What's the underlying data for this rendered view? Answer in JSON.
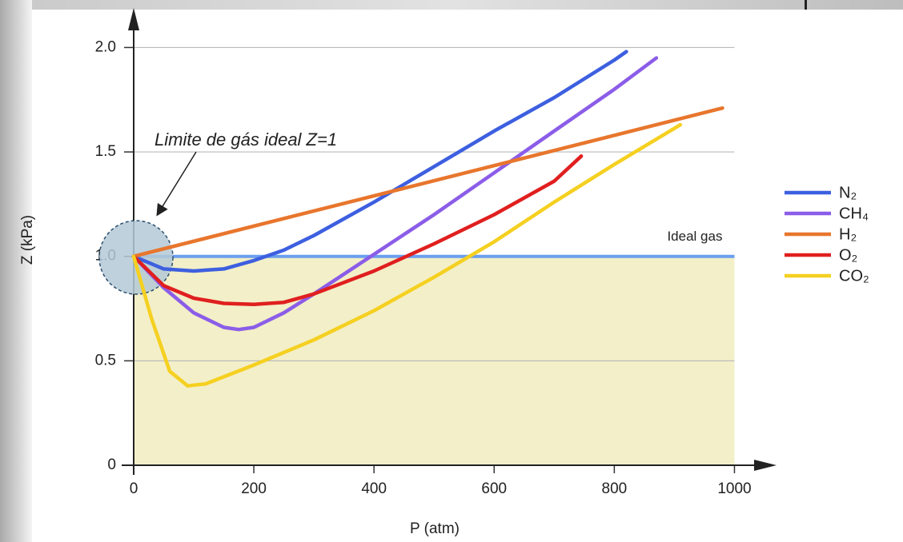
{
  "chart_data": {
    "type": "line",
    "xlabel": "P (atm)",
    "ylabel": "Z (kPa)",
    "annotation": "Limite de gás ideal Z=1",
    "reference_line": {
      "value": 1,
      "label": "Ideal gas",
      "color": "#6a9ef0",
      "fill": "#f3efc8"
    },
    "xlim": [
      0,
      1070
    ],
    "ylim": [
      0,
      2.17
    ],
    "xticks": [
      0,
      200,
      400,
      600,
      800,
      1000
    ],
    "yticks": [
      0,
      0.5,
      {
        "value": 1,
        "label": "1.0"
      },
      1.5,
      {
        "value": 2,
        "label": "2.0"
      }
    ],
    "grid": true,
    "legend": "right",
    "series": [
      {
        "name": "N₂",
        "color": "#3d5fe0",
        "x": [
          0,
          50,
          100,
          150,
          200,
          250,
          300,
          400,
          500,
          600,
          700,
          800,
          820
        ],
        "values": [
          1.0,
          0.94,
          0.93,
          0.94,
          0.98,
          1.03,
          1.1,
          1.26,
          1.43,
          1.6,
          1.76,
          1.94,
          1.98
        ]
      },
      {
        "name": "CH₄",
        "color": "#8b5de8",
        "x": [
          0,
          50,
          100,
          150,
          175,
          200,
          250,
          300,
          400,
          500,
          600,
          700,
          800,
          870
        ],
        "values": [
          1.0,
          0.85,
          0.73,
          0.66,
          0.65,
          0.66,
          0.73,
          0.82,
          1.01,
          1.2,
          1.4,
          1.6,
          1.8,
          1.95
        ]
      },
      {
        "name": "H₂",
        "color": "#e8762d",
        "x": [
          0,
          980
        ],
        "values": [
          1.0,
          1.71
        ]
      },
      {
        "name": "O₂",
        "color": "#e01f1f",
        "x": [
          0,
          50,
          100,
          150,
          200,
          250,
          300,
          400,
          500,
          600,
          700,
          745
        ],
        "values": [
          1.0,
          0.86,
          0.8,
          0.775,
          0.77,
          0.78,
          0.82,
          0.93,
          1.06,
          1.2,
          1.36,
          1.48
        ]
      },
      {
        "name": "CO₂",
        "color": "#f5d020",
        "x": [
          0,
          30,
          60,
          90,
          120,
          200,
          300,
          400,
          500,
          600,
          700,
          800,
          910
        ],
        "values": [
          1.0,
          0.7,
          0.45,
          0.38,
          0.39,
          0.48,
          0.6,
          0.74,
          0.9,
          1.07,
          1.26,
          1.44,
          1.63
        ]
      }
    ]
  }
}
